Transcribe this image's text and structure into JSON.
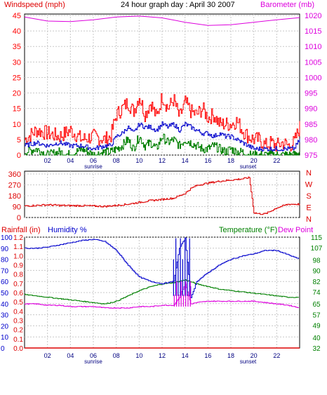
{
  "title": "24 hour graph day : April 30 2007",
  "colors": {
    "windspeed": "#ff0000",
    "wind_avg": "#0000cc",
    "wind_low": "#008000",
    "barometer": "#dd00dd",
    "direction": "#dd0000",
    "humidity": "#0000cc",
    "temperature": "#008000",
    "dewpoint": "#dd00dd",
    "rainfall": "#dd0000",
    "grid": "#c8c8c8",
    "axis": "#000000"
  },
  "x_axis": {
    "tick_labels": [
      "02",
      "04",
      "06",
      "08",
      "10",
      "12",
      "14",
      "16",
      "18",
      "20",
      "22"
    ],
    "tick_hours": [
      2,
      4,
      6,
      8,
      10,
      12,
      14,
      16,
      18,
      20,
      22
    ],
    "range_hours": [
      0,
      24
    ],
    "sunrise_label": "sunrise",
    "sunset_label": "sunset",
    "sunrise_hour": 6.0,
    "sunset_hour": 19.5
  },
  "panels": {
    "wind": {
      "left_label": "Windspeed (mph)",
      "right_label": "Barometer (mb)",
      "left_ticks": [
        0,
        5,
        10,
        15,
        20,
        25,
        30,
        35,
        40,
        45
      ],
      "right_ticks": [
        975,
        980,
        985,
        990,
        995,
        1000,
        1005,
        1010,
        1015,
        1020
      ]
    },
    "direction": {
      "left_ticks": [
        0,
        90,
        180,
        270,
        360
      ],
      "right_letters": [
        "N",
        "W",
        "S",
        "E",
        "N"
      ]
    },
    "humidity": {
      "rain_label": "Rainfall (in)",
      "humidity_label": "Humidity %",
      "temp_label": "Temperature (°F)",
      "dew_label": "Dew Point",
      "humidity_ticks": [
        0,
        10,
        20,
        30,
        40,
        50,
        60,
        70,
        80,
        90,
        100
      ],
      "rain_ticks": [
        "0.0",
        "0.1",
        "0.2",
        "0.3",
        "0.4",
        "0.5",
        "0.6",
        "0.7",
        "0.8",
        "0.9",
        "1.0",
        "1.1",
        "1.2"
      ],
      "temp_ticks": [
        32,
        40,
        49,
        57,
        65,
        74,
        82,
        90,
        98,
        107,
        115
      ]
    }
  },
  "chart_data": [
    {
      "type": "line",
      "title": "24 hour graph day : April 30 2007",
      "xlabel": "",
      "ylabel": "Windspeed (mph)",
      "ylabel_right": "Barometer (mb)",
      "xlim": [
        0,
        24
      ],
      "ylim": [
        0,
        45
      ],
      "ylim_right": [
        975,
        1020
      ],
      "grid": true,
      "series": [
        {
          "name": "Windspeed (mph)",
          "axis": "left",
          "x": [
            0,
            1,
            2,
            3,
            4,
            5,
            6,
            7,
            7.5,
            8,
            8.5,
            9,
            9.5,
            10,
            10.5,
            11,
            11.5,
            12,
            12.5,
            13,
            13.5,
            14,
            14.5,
            15,
            15.5,
            16,
            16.5,
            17,
            17.5,
            18,
            18.5,
            19,
            19.5,
            20,
            20.5,
            21,
            21.5,
            22,
            22.5,
            23,
            23.5,
            24
          ],
          "values": [
            5,
            8,
            7,
            6,
            8,
            5,
            6,
            5,
            6,
            13,
            15,
            17,
            14,
            19,
            13,
            17,
            12,
            19,
            15,
            18,
            12,
            17,
            14,
            13,
            15,
            12,
            13,
            10,
            10,
            10,
            11,
            8,
            6,
            5,
            5,
            3,
            4,
            3,
            4,
            3,
            4,
            9
          ]
        },
        {
          "name": "",
          "axis": "left",
          "x": [
            0,
            1,
            2,
            3,
            4,
            5,
            6,
            7,
            7.5,
            8,
            8.5,
            9,
            9.5,
            10,
            10.5,
            11,
            11.5,
            12,
            12.5,
            13,
            13.5,
            14,
            14.5,
            15,
            15.5,
            16,
            16.5,
            17,
            17.5,
            18,
            18.5,
            19,
            19.5,
            20,
            20.5,
            21,
            21.5,
            22,
            22.5,
            23,
            23.5,
            24
          ],
          "values": [
            3,
            4,
            3,
            4,
            3,
            3,
            2,
            3,
            3,
            6,
            7,
            9,
            7,
            10,
            9,
            9,
            8,
            10,
            9,
            10,
            8,
            10,
            9,
            8,
            7,
            7,
            6,
            7,
            6,
            6,
            5,
            4,
            3,
            2,
            2,
            2,
            2,
            2,
            2,
            2,
            2,
            5
          ]
        },
        {
          "name": "",
          "axis": "left",
          "x": [
            0,
            1,
            2,
            3,
            4,
            5,
            6,
            7,
            7.5,
            8,
            8.5,
            9,
            9.5,
            10,
            10.5,
            11,
            11.5,
            12,
            12.5,
            13,
            13.5,
            14,
            14.5,
            15,
            15.5,
            16,
            16.5,
            17,
            17.5,
            18,
            18.5,
            19,
            19.5,
            20,
            20.5,
            21,
            21.5,
            22,
            22.5,
            23,
            23.5,
            24
          ],
          "values": [
            1,
            2,
            0,
            1,
            0,
            2,
            0,
            1,
            1,
            2,
            3,
            5,
            2,
            6,
            3,
            4,
            2,
            6,
            4,
            5,
            3,
            5,
            4,
            3,
            2,
            2,
            3,
            2,
            1,
            2,
            1,
            1,
            0,
            0,
            0,
            0,
            0,
            0,
            0,
            0,
            0,
            1
          ]
        },
        {
          "name": "Barometer (mb)",
          "axis": "right",
          "x": [
            0,
            2,
            4,
            6,
            8,
            10,
            12,
            14,
            16,
            18,
            20,
            22,
            24
          ],
          "values": [
            1019.5,
            1018.2,
            1018.0,
            1018.6,
            1019.5,
            1019.8,
            1019.2,
            1017.8,
            1016.8,
            1017.0,
            1017.8,
            1018.6,
            1019.3
          ]
        }
      ]
    },
    {
      "type": "scatter",
      "xlabel": "",
      "ylabel": "",
      "xlim": [
        0,
        24
      ],
      "ylim": [
        0,
        360
      ],
      "grid": true,
      "series": [
        {
          "name": "",
          "x": [
            0,
            1,
            2,
            3,
            4,
            5,
            6,
            7,
            8,
            9,
            10,
            11,
            12,
            13,
            14,
            14.5,
            15,
            16,
            17,
            18,
            19,
            19.6,
            20,
            20.5,
            21,
            22,
            23
          ],
          "values": [
            95,
            100,
            105,
            100,
            98,
            98,
            95,
            92,
            100,
            110,
            125,
            140,
            150,
            160,
            200,
            240,
            265,
            285,
            300,
            310,
            320,
            330,
            40,
            30,
            30,
            80,
            110
          ]
        }
      ]
    },
    {
      "type": "line",
      "xlabel": "",
      "ylabel": "Humidity %",
      "ylabel_right": "Temperature (°F)",
      "xlim": [
        0,
        24
      ],
      "ylim": [
        0,
        100
      ],
      "ylim_right": [
        32,
        115
      ],
      "grid": true,
      "series": [
        {
          "name": "Humidity %",
          "axis": "left",
          "x": [
            0,
            1,
            2,
            3,
            4,
            5,
            6,
            7,
            8,
            9,
            10,
            11,
            12,
            13,
            13.5,
            14,
            14.5,
            15,
            16,
            17,
            18,
            19,
            20,
            21,
            22,
            23,
            24
          ],
          "values": [
            90,
            90,
            91,
            93,
            95,
            97,
            98,
            96,
            88,
            75,
            64,
            60,
            58,
            60,
            90,
            99,
            45,
            60,
            68,
            75,
            80,
            83,
            85,
            88,
            88,
            84,
            80
          ]
        },
        {
          "name": "Temperature (°F)",
          "axis": "right",
          "x": [
            0,
            1,
            2,
            3,
            4,
            5,
            6,
            7,
            8,
            9,
            10,
            11,
            12,
            13,
            14,
            15,
            16,
            17,
            18,
            19,
            20,
            21,
            22,
            23,
            24
          ],
          "values": [
            72,
            71,
            70,
            69,
            68,
            67,
            66,
            65,
            67,
            71,
            75,
            78,
            80,
            81,
            83,
            80,
            78,
            76,
            75,
            74,
            73,
            72,
            71,
            70,
            70
          ]
        },
        {
          "name": "Dew Point",
          "axis": "right",
          "x": [
            0,
            1,
            2,
            3,
            4,
            5,
            6,
            7,
            8,
            9,
            10,
            11,
            12,
            13,
            13.5,
            14,
            14.5,
            15,
            16,
            17,
            18,
            19,
            20,
            21,
            22,
            23,
            24
          ],
          "values": [
            65,
            65,
            64,
            64,
            63,
            63,
            63,
            62,
            62,
            62,
            63,
            63,
            64,
            64,
            70,
            80,
            65,
            66,
            67,
            67,
            67,
            67,
            67,
            66,
            65,
            64,
            62
          ]
        },
        {
          "name": "Rainfall (in)",
          "axis": "left",
          "x": [
            0,
            24
          ],
          "values": [
            0,
            0
          ]
        }
      ]
    }
  ]
}
